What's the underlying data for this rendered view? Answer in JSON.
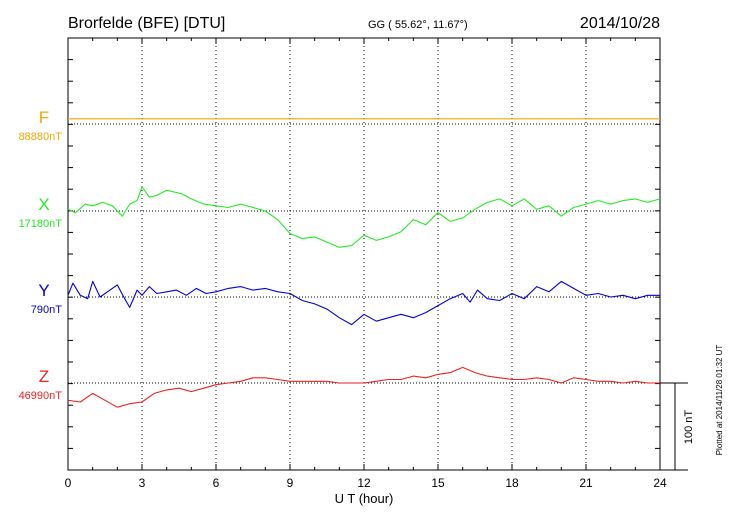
{
  "header": {
    "station": "Brorfelde (BFE)  [DTU]",
    "coords": "GG ( 55.62°,  11.67°)",
    "date": "2014/10/28"
  },
  "footer_note": "Plotted at 2014/11/28 01:32 UT",
  "chart_data": {
    "type": "line",
    "xlabel": "U T (hour)",
    "ylabel": "",
    "xlim": [
      0,
      24
    ],
    "xticks": [
      0,
      3,
      6,
      9,
      12,
      15,
      18,
      21,
      24
    ],
    "grid": true,
    "scale_bar": {
      "label": "100 nT",
      "value_nT": 100
    },
    "nT_per_tick": 25,
    "series": [
      {
        "name": "F",
        "baseline_label": "88880nT",
        "baseline_nT": 88880,
        "color": "#f0a800",
        "points": [
          [
            0,
            6
          ],
          [
            24,
            6
          ]
        ]
      },
      {
        "name": "X",
        "baseline_label": "17180nT",
        "baseline_nT": 17180,
        "color": "#22ee22",
        "points": [
          [
            0,
            2
          ],
          [
            0.3,
            -2
          ],
          [
            0.7,
            8
          ],
          [
            1.0,
            6
          ],
          [
            1.4,
            10
          ],
          [
            1.8,
            6
          ],
          [
            2.2,
            -6
          ],
          [
            2.5,
            8
          ],
          [
            2.8,
            12
          ],
          [
            3.0,
            28
          ],
          [
            3.3,
            16
          ],
          [
            3.6,
            18
          ],
          [
            4.0,
            24
          ],
          [
            4.3,
            22
          ],
          [
            4.6,
            20
          ],
          [
            5.0,
            14
          ],
          [
            5.5,
            8
          ],
          [
            6.0,
            6
          ],
          [
            6.5,
            4
          ],
          [
            7.0,
            8
          ],
          [
            7.5,
            4
          ],
          [
            8.0,
            0
          ],
          [
            8.5,
            -10
          ],
          [
            9.0,
            -26
          ],
          [
            9.5,
            -32
          ],
          [
            10.0,
            -30
          ],
          [
            10.5,
            -36
          ],
          [
            11.0,
            -42
          ],
          [
            11.5,
            -40
          ],
          [
            12.0,
            -28
          ],
          [
            12.5,
            -34
          ],
          [
            13.0,
            -30
          ],
          [
            13.5,
            -24
          ],
          [
            14.0,
            -10
          ],
          [
            14.5,
            -16
          ],
          [
            15.0,
            -2
          ],
          [
            15.5,
            -12
          ],
          [
            16.0,
            -8
          ],
          [
            16.5,
            2
          ],
          [
            17.0,
            10
          ],
          [
            17.5,
            14
          ],
          [
            18.0,
            6
          ],
          [
            18.5,
            14
          ],
          [
            19.0,
            2
          ],
          [
            19.5,
            6
          ],
          [
            20.0,
            -6
          ],
          [
            20.5,
            4
          ],
          [
            21.0,
            8
          ],
          [
            21.5,
            12
          ],
          [
            22.0,
            8
          ],
          [
            22.5,
            12
          ],
          [
            23.0,
            14
          ],
          [
            23.5,
            10
          ],
          [
            24.0,
            14
          ]
        ]
      },
      {
        "name": "Y",
        "baseline_label": "790nT",
        "baseline_nT": 790,
        "color": "#0000dd",
        "points": [
          [
            0,
            2
          ],
          [
            0.2,
            16
          ],
          [
            0.5,
            2
          ],
          [
            0.8,
            -2
          ],
          [
            1.0,
            18
          ],
          [
            1.3,
            0
          ],
          [
            1.6,
            6
          ],
          [
            2.0,
            14
          ],
          [
            2.3,
            -2
          ],
          [
            2.5,
            -12
          ],
          [
            2.8,
            8
          ],
          [
            3.0,
            2
          ],
          [
            3.3,
            12
          ],
          [
            3.6,
            4
          ],
          [
            4.0,
            6
          ],
          [
            4.4,
            8
          ],
          [
            4.8,
            2
          ],
          [
            5.2,
            10
          ],
          [
            5.6,
            4
          ],
          [
            6.0,
            6
          ],
          [
            6.5,
            10
          ],
          [
            7.0,
            12
          ],
          [
            7.5,
            8
          ],
          [
            8.0,
            10
          ],
          [
            8.5,
            6
          ],
          [
            9.0,
            4
          ],
          [
            9.5,
            -4
          ],
          [
            10.0,
            -8
          ],
          [
            10.5,
            -14
          ],
          [
            11.0,
            -24
          ],
          [
            11.5,
            -32
          ],
          [
            12.0,
            -20
          ],
          [
            12.5,
            -28
          ],
          [
            13.0,
            -24
          ],
          [
            13.5,
            -20
          ],
          [
            14.0,
            -24
          ],
          [
            14.5,
            -18
          ],
          [
            15.0,
            -10
          ],
          [
            15.5,
            -2
          ],
          [
            16.0,
            4
          ],
          [
            16.3,
            -6
          ],
          [
            16.6,
            8
          ],
          [
            17.0,
            -2
          ],
          [
            17.5,
            -4
          ],
          [
            18.0,
            4
          ],
          [
            18.5,
            -2
          ],
          [
            19.0,
            12
          ],
          [
            19.5,
            6
          ],
          [
            20.0,
            18
          ],
          [
            20.5,
            10
          ],
          [
            21.0,
            2
          ],
          [
            21.5,
            4
          ],
          [
            22.0,
            0
          ],
          [
            22.5,
            2
          ],
          [
            23.0,
            -2
          ],
          [
            23.5,
            2
          ],
          [
            24.0,
            2
          ]
        ]
      },
      {
        "name": "Z",
        "baseline_label": "46990nT",
        "baseline_nT": 46990,
        "color": "#ee2222",
        "points": [
          [
            0,
            -20
          ],
          [
            0.5,
            -22
          ],
          [
            1.0,
            -12
          ],
          [
            1.5,
            -20
          ],
          [
            2.0,
            -28
          ],
          [
            2.5,
            -24
          ],
          [
            3.0,
            -22
          ],
          [
            3.5,
            -12
          ],
          [
            4.0,
            -8
          ],
          [
            4.5,
            -6
          ],
          [
            5.0,
            -10
          ],
          [
            5.5,
            -6
          ],
          [
            6.0,
            -2
          ],
          [
            6.5,
            0
          ],
          [
            7.0,
            2
          ],
          [
            7.5,
            6
          ],
          [
            8.0,
            6
          ],
          [
            8.5,
            4
          ],
          [
            9.0,
            2
          ],
          [
            9.5,
            2
          ],
          [
            10.0,
            2
          ],
          [
            10.5,
            2
          ],
          [
            11.0,
            0
          ],
          [
            11.5,
            0
          ],
          [
            12.0,
            0
          ],
          [
            12.5,
            2
          ],
          [
            13.0,
            4
          ],
          [
            13.5,
            4
          ],
          [
            14.0,
            8
          ],
          [
            14.5,
            6
          ],
          [
            15.0,
            10
          ],
          [
            15.5,
            12
          ],
          [
            16.0,
            18
          ],
          [
            16.5,
            12
          ],
          [
            17.0,
            8
          ],
          [
            17.5,
            6
          ],
          [
            18.0,
            4
          ],
          [
            18.5,
            4
          ],
          [
            19.0,
            6
          ],
          [
            19.5,
            4
          ],
          [
            20.0,
            0
          ],
          [
            20.5,
            6
          ],
          [
            21.0,
            4
          ],
          [
            21.5,
            2
          ],
          [
            22.0,
            2
          ],
          [
            22.5,
            0
          ],
          [
            23.0,
            2
          ],
          [
            23.5,
            0
          ],
          [
            24.0,
            0
          ]
        ]
      }
    ]
  }
}
